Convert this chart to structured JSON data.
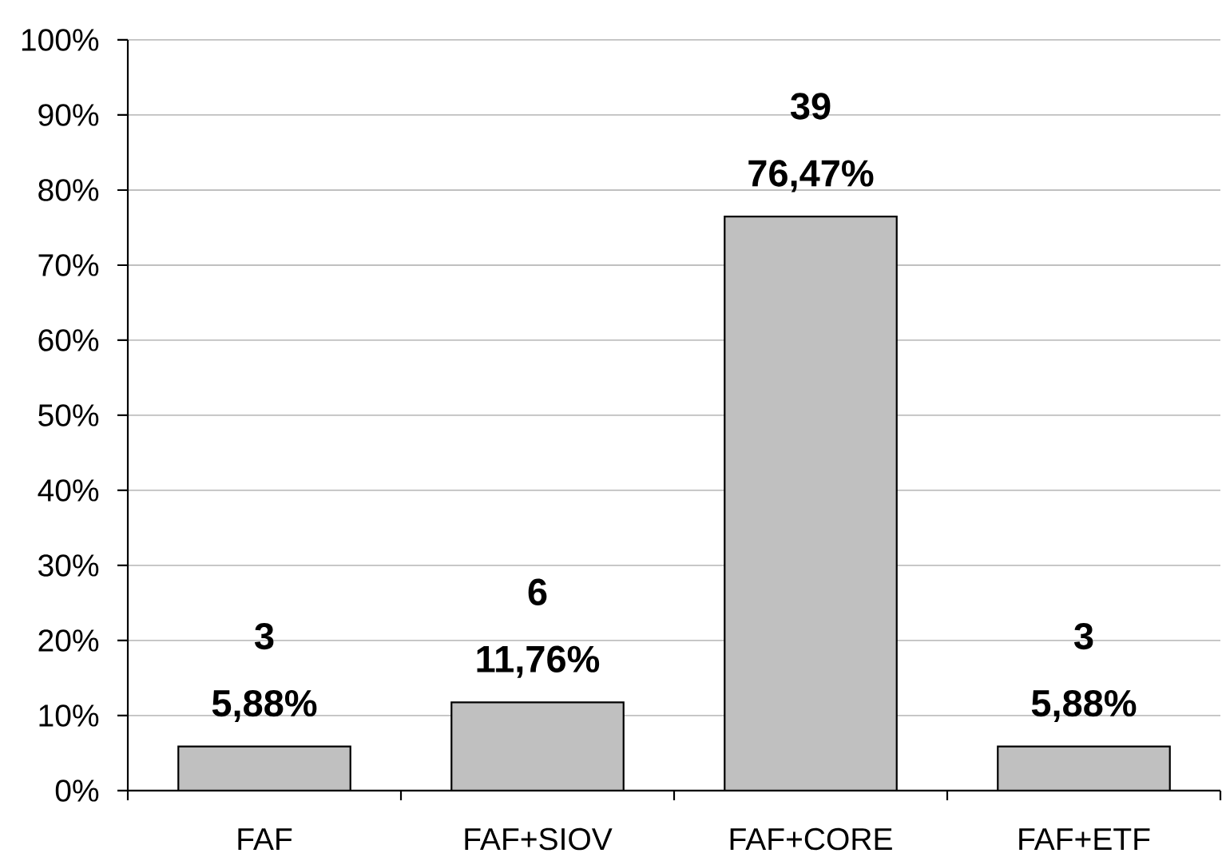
{
  "chart_data": {
    "type": "bar",
    "categories": [
      "FAF",
      "FAF+SIOV",
      "FAF+CORE",
      "FAF+ETF"
    ],
    "values": [
      5.88,
      11.76,
      76.47,
      5.88
    ],
    "color": "#c0c0c0",
    "value_labels": [
      "5,88%",
      "11,76%",
      "76,47%",
      "5,88%"
    ],
    "annotations": [
      {
        "text": "3",
        "x": "FAF",
        "y": 5.88
      },
      {
        "text": "6",
        "x": "FAF+SIOV",
        "y": 11.76
      },
      {
        "text": "39",
        "x": "FAF+CORE",
        "y": 76.47
      },
      {
        "text": "3",
        "x": "FAF+ETF",
        "y": 5.88
      }
    ],
    "ylim": [
      0,
      100
    ],
    "yticks": [
      {
        "value": 0,
        "label": "0%"
      },
      {
        "value": 10,
        "label": "10%"
      },
      {
        "value": 20,
        "label": "20%"
      },
      {
        "value": 30,
        "label": "30%"
      },
      {
        "value": 40,
        "label": "40%"
      },
      {
        "value": 50,
        "label": "50%"
      },
      {
        "value": 60,
        "label": "60%"
      },
      {
        "value": 70,
        "label": "70%"
      },
      {
        "value": 80,
        "label": "80%"
      },
      {
        "value": 90,
        "label": "90%"
      },
      {
        "value": 100,
        "label": "100%"
      }
    ],
    "grid": "y"
  }
}
